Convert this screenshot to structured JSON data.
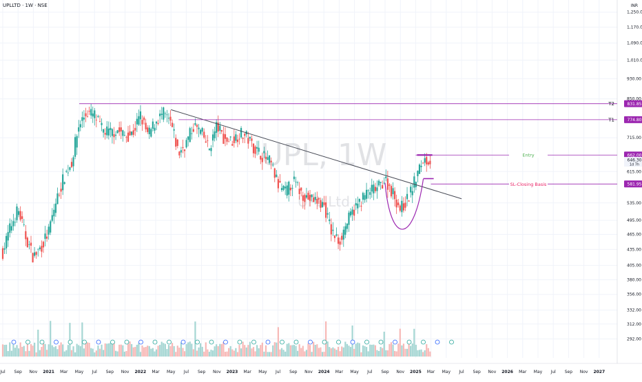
{
  "header": {
    "symbol_title": "UPLLTD · 1W · NSE",
    "currency": "INR"
  },
  "colors": {
    "up": "#26a69a",
    "down": "#ef5350",
    "vol_up": "#a5d6d3",
    "vol_down": "#f7b9b7",
    "target": "#9c27b0",
    "trendline": "#434651",
    "entry_text": "#4caf50",
    "sl_text": "#e91e63",
    "watermark": "#c8cacf"
  },
  "chart_data": {
    "type": "candlestick",
    "title": "UPLLTD · 1W · NSE",
    "watermark": "UPL, 1W",
    "watermark_sub": "UPL Ltd",
    "y_scale": "log",
    "ylim": [
      270,
      1280
    ],
    "y_ticks": [
      "1,250.00",
      "1,170.00",
      "1,090.00",
      "1,010.00",
      "930.00",
      "850.00",
      "715.00",
      "615.00",
      "535.00",
      "495.00",
      "465.00",
      "435.00",
      "405.00",
      "380.00",
      "356.00",
      "332.00",
      "312.00",
      "292.00"
    ],
    "y_tick_values": [
      1250,
      1170,
      1090,
      1010,
      930,
      850,
      715,
      615,
      535,
      495,
      465,
      435,
      405,
      380,
      356,
      332,
      312,
      292
    ],
    "x_ticks": [
      "Jul",
      "Sep",
      "Nov",
      "2021",
      "Mar",
      "May",
      "Jul",
      "Sep",
      "Nov",
      "2022",
      "Mar",
      "May",
      "Jul",
      "Sep",
      "Nov",
      "2023",
      "Mar",
      "May",
      "Jul",
      "Sep",
      "Nov",
      "2024",
      "Mar",
      "May",
      "Jul",
      "Sep",
      "Nov",
      "2025",
      "Mar",
      "May",
      "Jul",
      "Sep",
      "Nov",
      "2026",
      "Mar",
      "May",
      "Jul",
      "Sep",
      "Nov",
      "2027"
    ],
    "x_tick_dates": [
      "2020-07",
      "2020-09",
      "2020-11",
      "2021-01",
      "2021-03",
      "2021-05",
      "2021-07",
      "2021-09",
      "2021-11",
      "2022-01",
      "2022-03",
      "2022-05",
      "2022-07",
      "2022-09",
      "2022-11",
      "2023-01",
      "2023-03",
      "2023-05",
      "2023-07",
      "2023-09",
      "2023-11",
      "2024-01",
      "2024-03",
      "2024-05",
      "2024-07",
      "2024-09",
      "2024-11",
      "2025-01",
      "2025-03",
      "2025-05",
      "2025-07",
      "2025-09",
      "2025-11",
      "2026-01",
      "2026-03",
      "2026-05",
      "2026-07",
      "2026-09",
      "2026-11",
      "2027-01"
    ],
    "price_path": [
      [
        "2020-07",
        430
      ],
      [
        "2020-08",
        480
      ],
      [
        "2020-09",
        520
      ],
      [
        "2020-10",
        460
      ],
      [
        "2020-11",
        420
      ],
      [
        "2020-12",
        440
      ],
      [
        "2021-01",
        470
      ],
      [
        "2021-02",
        540
      ],
      [
        "2021-03",
        600
      ],
      [
        "2021-04",
        640
      ],
      [
        "2021-05",
        760
      ],
      [
        "2021-06",
        800
      ],
      [
        "2021-07",
        790
      ],
      [
        "2021-08",
        740
      ],
      [
        "2021-09",
        730
      ],
      [
        "2021-10",
        740
      ],
      [
        "2021-11",
        720
      ],
      [
        "2021-12",
        730
      ],
      [
        "2022-01",
        790
      ],
      [
        "2022-02",
        720
      ],
      [
        "2022-03",
        770
      ],
      [
        "2022-04",
        795
      ],
      [
        "2022-05",
        760
      ],
      [
        "2022-06",
        665
      ],
      [
        "2022-07",
        700
      ],
      [
        "2022-08",
        755
      ],
      [
        "2022-09",
        730
      ],
      [
        "2022-10",
        680
      ],
      [
        "2022-11",
        755
      ],
      [
        "2022-12",
        710
      ],
      [
        "2023-01",
        705
      ],
      [
        "2023-02",
        730
      ],
      [
        "2023-03",
        715
      ],
      [
        "2023-04",
        680
      ],
      [
        "2023-05",
        660
      ],
      [
        "2023-06",
        640
      ],
      [
        "2023-07",
        580
      ],
      [
        "2023-08",
        560
      ],
      [
        "2023-09",
        590
      ],
      [
        "2023-10",
        560
      ],
      [
        "2023-11",
        545
      ],
      [
        "2023-12",
        540
      ],
      [
        "2024-01",
        530
      ],
      [
        "2024-02",
        470
      ],
      [
        "2024-03",
        450
      ],
      [
        "2024-04",
        490
      ],
      [
        "2024-05",
        520
      ],
      [
        "2024-06",
        545
      ],
      [
        "2024-07",
        565
      ],
      [
        "2024-08",
        570
      ],
      [
        "2024-09",
        595
      ],
      [
        "2024-10",
        560
      ],
      [
        "2024-11",
        520
      ],
      [
        "2024-12",
        545
      ],
      [
        "2025-01",
        595
      ],
      [
        "2025-02",
        650
      ],
      [
        "2025-03",
        646.3
      ]
    ],
    "last_price": "646.30",
    "countdown": "1d 7h",
    "levels": [
      {
        "name": "T2",
        "value": 831.85,
        "label": "831.85"
      },
      {
        "name": "T1",
        "value": 774.8,
        "label": "774.80"
      },
      {
        "name": "Entry",
        "value": 662,
        "label": "662.00"
      },
      {
        "name": "SL-Closing Basis",
        "value": 581.95,
        "label": "581.95"
      }
    ],
    "trendline": [
      [
        "2022-05",
        810
      ],
      [
        "2025-07",
        545
      ]
    ],
    "cup": [
      [
        "2024-09",
        585
      ],
      [
        "2024-12",
        468
      ],
      [
        "2025-02",
        595
      ]
    ]
  }
}
